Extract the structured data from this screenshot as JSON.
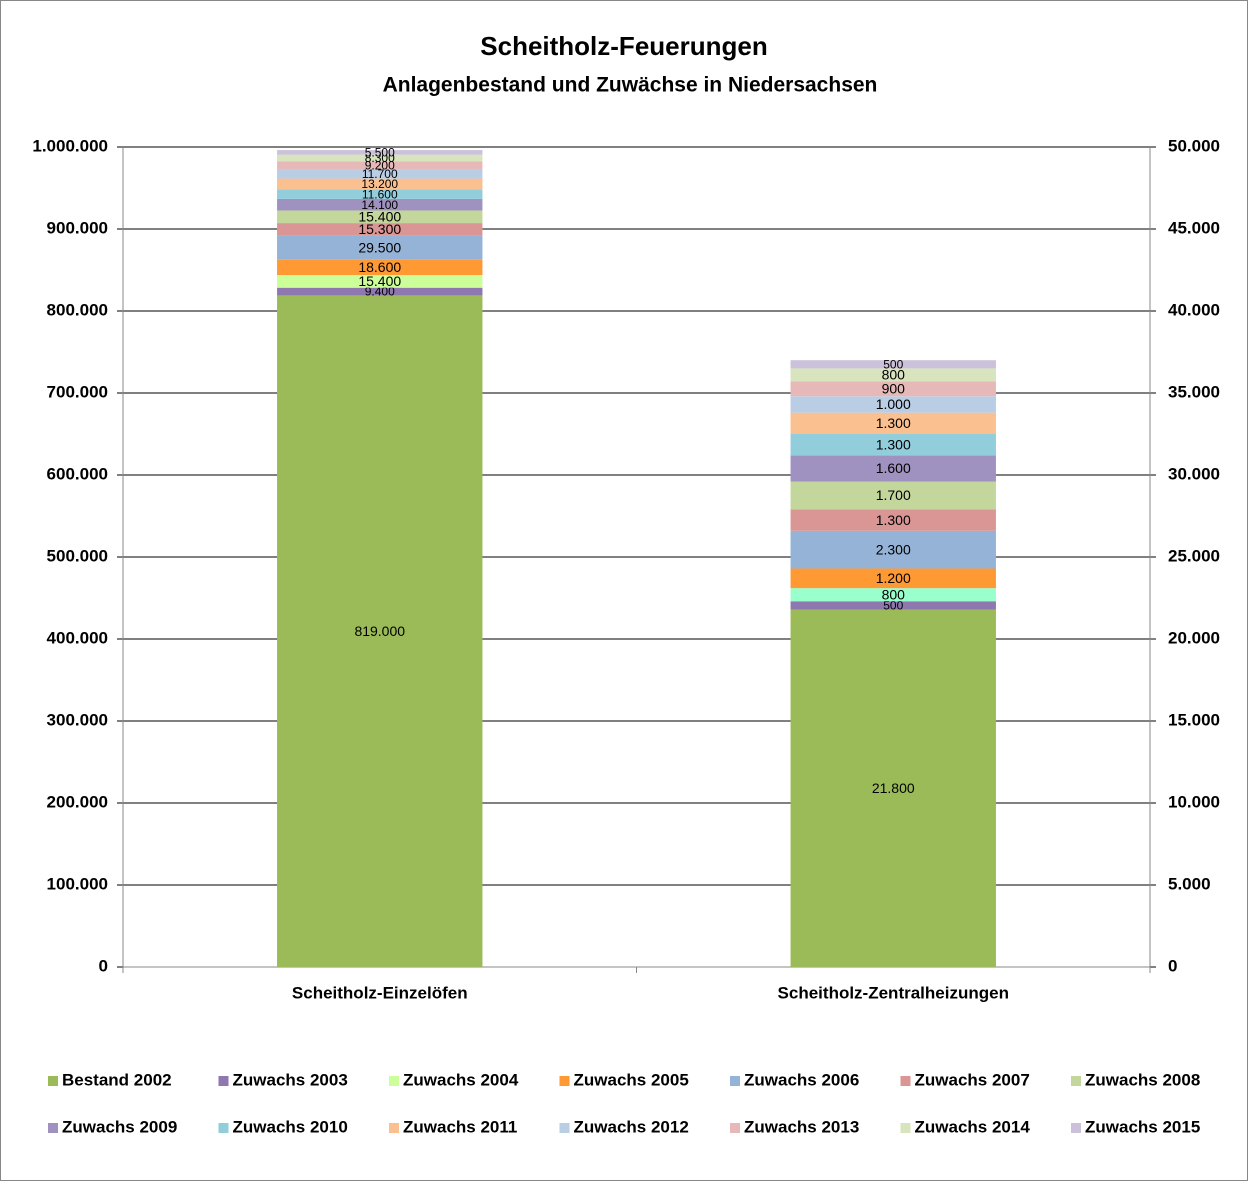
{
  "chart_data": {
    "type": "stacked_bar",
    "title": "Scheitholz-Feuerungen",
    "subtitle": "Anlagenbestand und Zuwächse in Niedersachsen",
    "categories": [
      "Scheitholz-Einzelöfen",
      "Scheitholz-Zentralheizungen"
    ],
    "category_axes": [
      "y",
      "y2"
    ],
    "ylim": [
      0,
      1000000
    ],
    "yticks": [
      0,
      {
        "value": 100000,
        "label": "100.000"
      },
      {
        "value": 200000,
        "label": "200.000"
      },
      {
        "value": 300000,
        "label": "300.000"
      },
      {
        "value": 400000,
        "label": "400.000"
      },
      {
        "value": 500000,
        "label": "500.000"
      },
      {
        "value": 600000,
        "label": "600.000"
      },
      {
        "value": 700000,
        "label": "700.000"
      },
      {
        "value": 800000,
        "label": "800.000"
      },
      {
        "value": 900000,
        "label": "900.000"
      },
      {
        "value": 1000000,
        "label": "1.000.000"
      }
    ],
    "y2lim": [
      0,
      50000
    ],
    "y2ticks": [
      0,
      {
        "value": 5000,
        "label": "5.000"
      },
      {
        "value": 10000,
        "label": "10.000"
      },
      {
        "value": 15000,
        "label": "15.000"
      },
      {
        "value": 20000,
        "label": "20.000"
      },
      {
        "value": 25000,
        "label": "25.000"
      },
      {
        "value": 30000,
        "label": "30.000"
      },
      {
        "value": 35000,
        "label": "35.000"
      },
      {
        "value": 40000,
        "label": "40.000"
      },
      {
        "value": 45000,
        "label": "45.000"
      },
      {
        "value": 50000,
        "label": "50.000"
      }
    ],
    "grid": true,
    "legend": "bottom",
    "series": [
      {
        "name": "Bestand 2002",
        "color": "#9bbb59",
        "values": [
          819000,
          21800
        ],
        "value_labels": [
          "819.000",
          "21.800"
        ]
      },
      {
        "name": "Zuwachs 2003",
        "color": "#8f78b0",
        "values": [
          9400,
          500
        ],
        "value_labels": [
          "9.400",
          "500"
        ]
      },
      {
        "name": "Zuwachs 2004",
        "color": "#ccff99",
        "colors": [
          "#ccff99",
          "#99ffcc"
        ],
        "values": [
          15400,
          800
        ],
        "value_labels": [
          "15.400",
          "800"
        ]
      },
      {
        "name": "Zuwachs 2005",
        "color": "#ff9933",
        "values": [
          18600,
          1200
        ],
        "value_labels": [
          "18.600",
          "1.200"
        ]
      },
      {
        "name": "Zuwachs 2006",
        "color": "#95b3d7",
        "values": [
          29500,
          2300
        ],
        "value_labels": [
          "29.500",
          "2.300"
        ]
      },
      {
        "name": "Zuwachs 2007",
        "color": "#d99694",
        "values": [
          15300,
          1300
        ],
        "value_labels": [
          "15.300",
          "1.300"
        ]
      },
      {
        "name": "Zuwachs 2008",
        "color": "#c3d69b",
        "values": [
          15400,
          1700
        ],
        "value_labels": [
          "15.400",
          "1.700"
        ]
      },
      {
        "name": "Zuwachs 2009",
        "color": "#a092c0",
        "values": [
          14100,
          1600
        ],
        "value_labels": [
          "14.100",
          "1.600"
        ]
      },
      {
        "name": "Zuwachs 2010",
        "color": "#92cddc",
        "values": [
          11600,
          1300
        ],
        "value_labels": [
          "11.600",
          "1.300"
        ]
      },
      {
        "name": "Zuwachs 2011",
        "color": "#fac090",
        "values": [
          13200,
          1300
        ],
        "value_labels": [
          "13.200",
          "1.300"
        ]
      },
      {
        "name": "Zuwachs 2012",
        "color": "#b9cde5",
        "values": [
          11700,
          1000
        ],
        "value_labels": [
          "11.700",
          "1.000"
        ]
      },
      {
        "name": "Zuwachs 2013",
        "color": "#e6b9b8",
        "values": [
          9200,
          900
        ],
        "value_labels": [
          "9.200",
          "900"
        ]
      },
      {
        "name": "Zuwachs 2014",
        "color": "#d7e4bd",
        "values": [
          8300,
          800
        ],
        "value_labels": [
          "8.300",
          "800"
        ]
      },
      {
        "name": "Zuwachs 2015",
        "color": "#ccc1da",
        "values": [
          5500,
          500
        ],
        "value_labels": [
          "5.500",
          "500"
        ]
      }
    ]
  }
}
